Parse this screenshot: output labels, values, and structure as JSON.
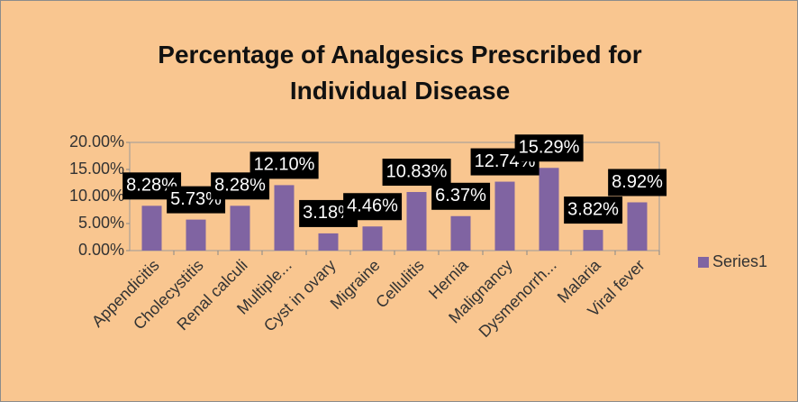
{
  "chart_data": {
    "type": "bar",
    "title": "Percentage of Analgesics Prescribed for Individual Disease",
    "categories": [
      "Appendicitis",
      "Cholecystitis",
      "Renal calculi",
      "Multiple...",
      "Cyst in ovary",
      "Migraine",
      "Cellulitis",
      "Hernia",
      "Malignancy",
      "Dysmenorrh...",
      "Malaria",
      "Viral fever"
    ],
    "series": [
      {
        "name": "Series1",
        "color": "#8064a2",
        "values": [
          8.28,
          5.73,
          8.28,
          12.1,
          3.18,
          4.46,
          10.83,
          6.37,
          12.74,
          15.29,
          3.82,
          8.92
        ],
        "value_labels": [
          "8.28%",
          "5.73%",
          "8.28%",
          "12.10%",
          "3.18%",
          "4.46%",
          "10.83%",
          "6.37%",
          "12.74%",
          "15.29%",
          "3.82%",
          "8.92%"
        ]
      }
    ],
    "ylim": [
      0,
      20
    ],
    "yticks": [
      {
        "value": 0,
        "label": "0.00%"
      },
      {
        "value": 5,
        "label": "5.00%"
      },
      {
        "value": 10,
        "label": "10.00%"
      },
      {
        "value": 15,
        "label": "15.00%"
      },
      {
        "value": 20,
        "label": "20.00%"
      }
    ],
    "legend": "right"
  }
}
